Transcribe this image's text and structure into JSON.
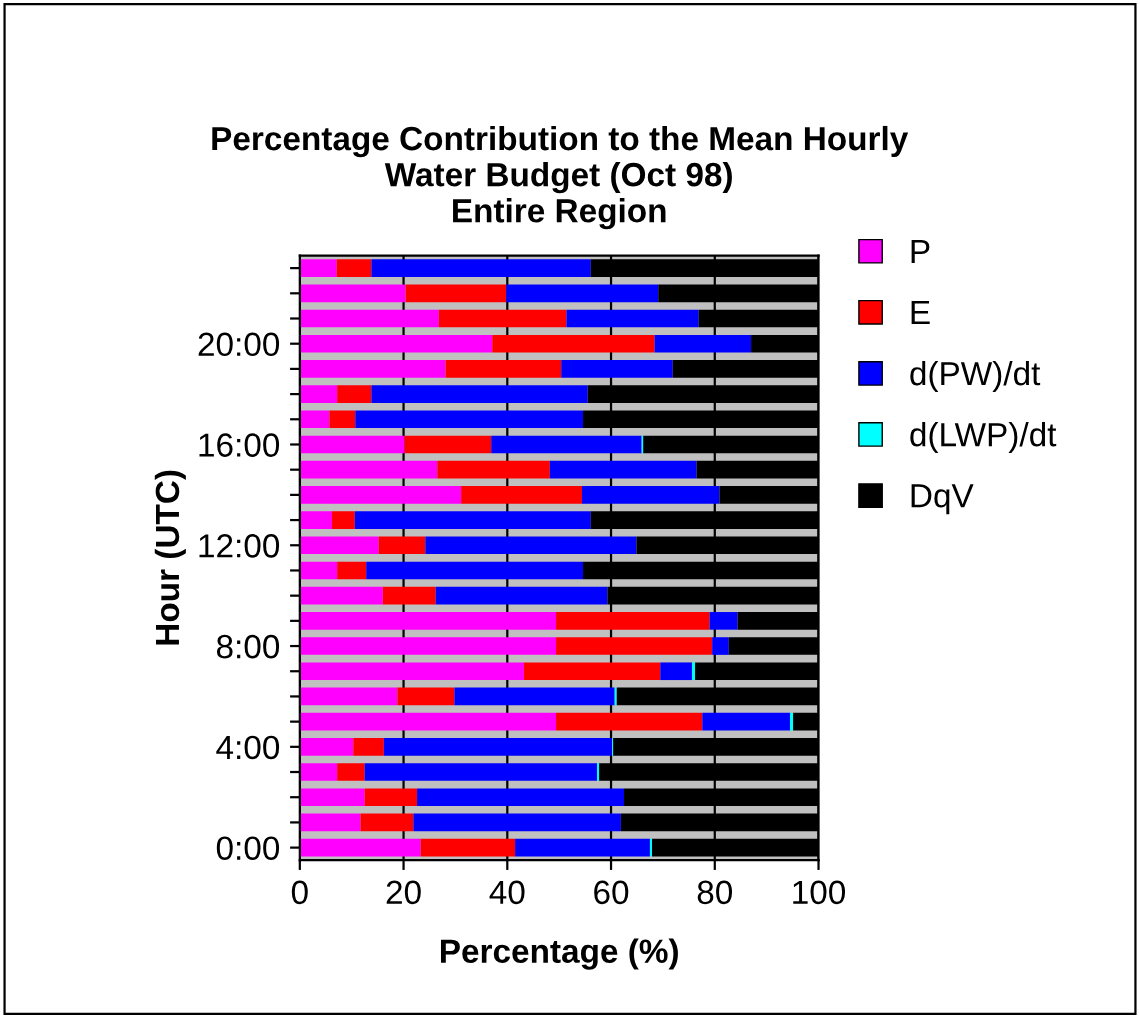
{
  "chart_data": {
    "type": "bar",
    "orientation": "horizontal",
    "stacked": true,
    "title": "Percentage Contribution to the Mean Hourly\nWater Budget (Oct 98)\nEntire Region",
    "xlabel": "Percentage (%)",
    "ylabel": "Hour (UTC)",
    "categories": [
      null,
      null,
      null,
      "20:00",
      null,
      null,
      null,
      "16:00",
      null,
      null,
      null,
      "12:00",
      null,
      null,
      null,
      "8:00",
      null,
      null,
      null,
      "4:00",
      null,
      null,
      null,
      "0:00"
    ],
    "series": [
      {
        "name": "P",
        "color": "#ff00ff",
        "values": [
          7.1,
          20.4,
          26.8,
          37.1,
          28.1,
          7.2,
          5.7,
          20.2,
          26.5,
          31.1,
          6.2,
          15.2,
          7.2,
          16.0,
          49.4,
          49.4,
          43.2,
          18.8,
          49.4,
          10.3,
          7.2,
          12.5,
          11.7,
          23.3
        ]
      },
      {
        "name": "E",
        "color": "#ff0000",
        "values": [
          6.7,
          19.4,
          24.6,
          31.3,
          22.3,
          6.6,
          5.0,
          16.7,
          21.7,
          23.3,
          4.4,
          9.0,
          5.6,
          10.2,
          29.6,
          30.1,
          26.3,
          11.0,
          28.2,
          5.9,
          5.3,
          10.1,
          10.2,
          18.2
        ]
      },
      {
        "name": "d(PW)/dt",
        "color": "#0000ff",
        "values": [
          42.3,
          29.3,
          25.5,
          18.6,
          21.5,
          41.7,
          43.9,
          29.0,
          28.3,
          26.5,
          45.5,
          40.7,
          41.8,
          33.1,
          5.4,
          3.2,
          6.1,
          30.9,
          16.9,
          44.0,
          44.8,
          39.9,
          40.0,
          26.0
        ]
      },
      {
        "name": "d(LWP)/dt",
        "color": "#00ffff",
        "values": [
          0,
          0,
          0,
          0,
          0,
          0,
          0,
          0.3,
          0,
          0,
          0,
          0,
          0,
          0,
          0,
          0,
          0.6,
          0.4,
          0.6,
          0.2,
          0.4,
          0,
          0,
          0.4
        ]
      },
      {
        "name": "DqV",
        "color": "#000000",
        "values": [
          43.9,
          30.9,
          23.1,
          13.0,
          28.1,
          44.5,
          45.4,
          33.8,
          23.5,
          19.1,
          43.9,
          35.1,
          45.4,
          40.7,
          15.6,
          17.3,
          23.8,
          38.9,
          4.9,
          39.6,
          42.3,
          37.5,
          38.1,
          32.1
        ]
      }
    ],
    "xlim": [
      0,
      100
    ],
    "xticks": [
      0,
      20,
      40,
      60,
      80,
      100
    ],
    "grid": "x",
    "legend": "right"
  }
}
